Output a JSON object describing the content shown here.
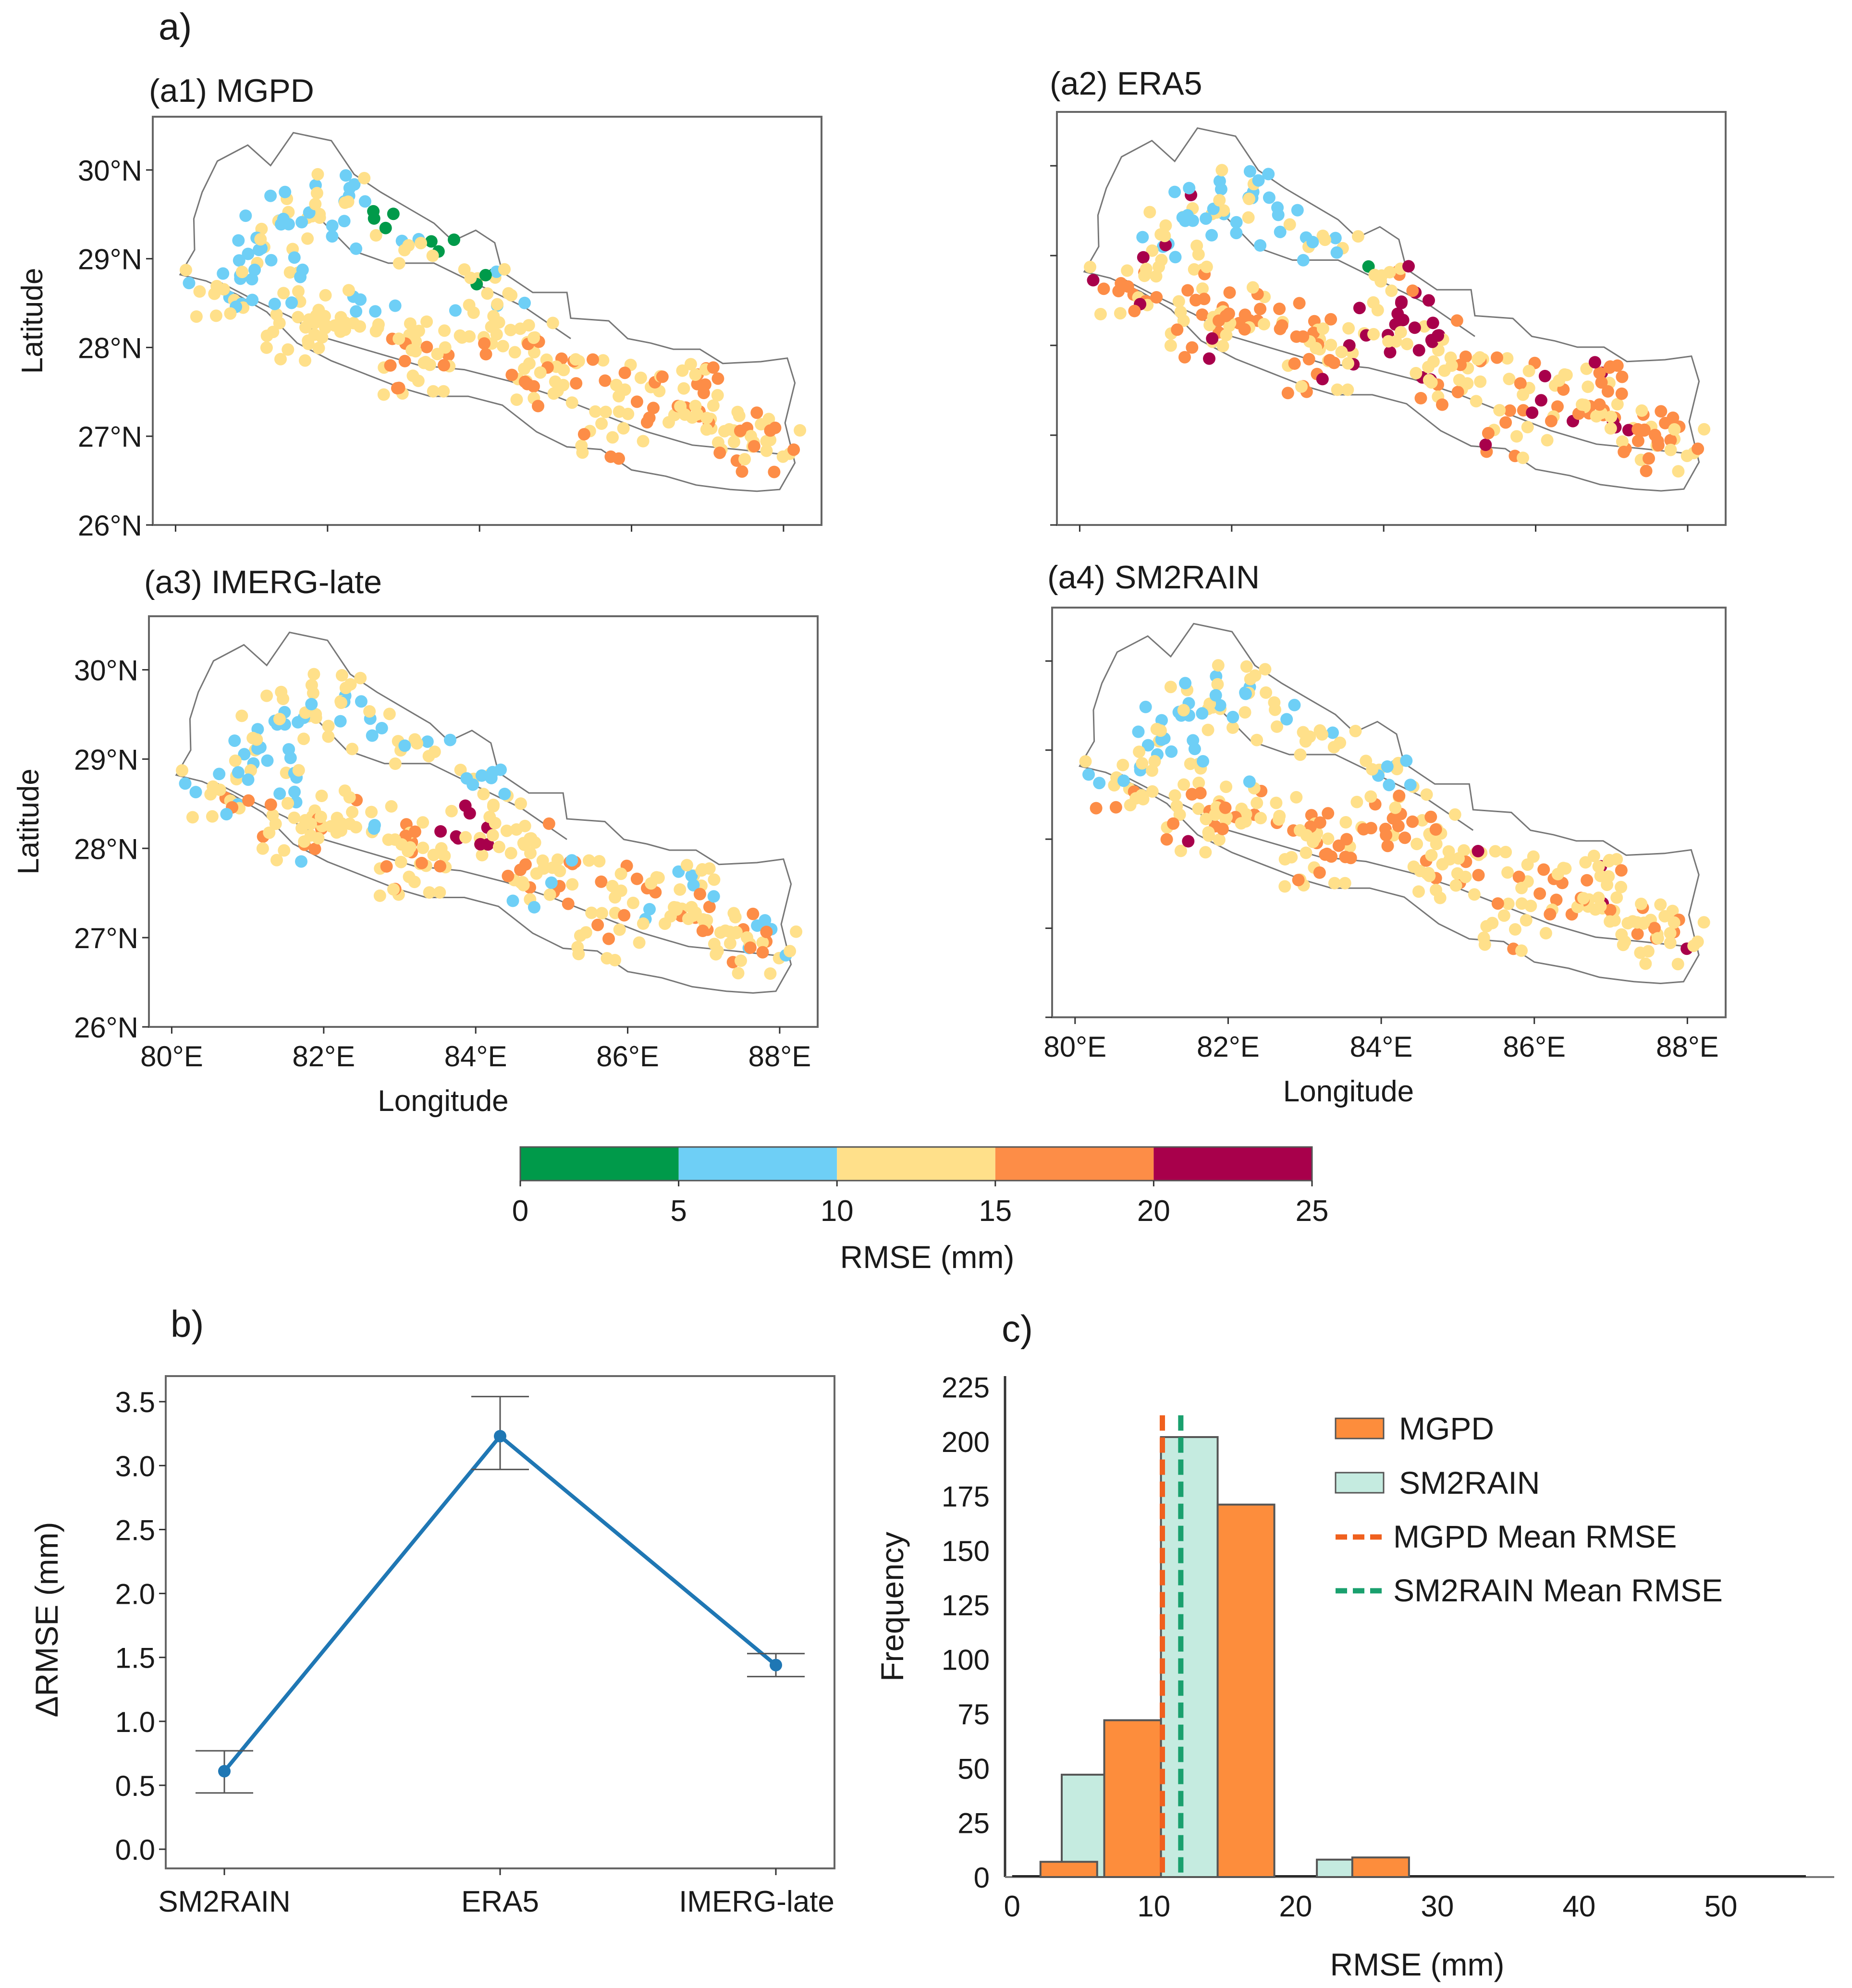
{
  "figure_labels": {
    "a": "a)",
    "b": "b)",
    "c": "c)"
  },
  "maps": {
    "panels": [
      {
        "id": "a1",
        "title": "(a1) MGPD"
      },
      {
        "id": "a2",
        "title": "(a2) ERA5"
      },
      {
        "id": "a3",
        "title": "(a3) IMERG-late"
      },
      {
        "id": "a4",
        "title": "(a4) SM2RAIN"
      }
    ],
    "lat_ticks": [
      "30°N",
      "29°N",
      "28°N",
      "27°N",
      "26°N"
    ],
    "lon_ticks": [
      "80°E",
      "82°E",
      "84°E",
      "86°E",
      "88°E"
    ],
    "ylabel": "Latitude",
    "xlabel": "Longitude",
    "bin_colors": [
      "#009a4a",
      "#6ecff6",
      "#ffe08a",
      "#fd8d47",
      "#a8004b"
    ]
  },
  "colorbar": {
    "ticks": [
      "0",
      "5",
      "10",
      "15",
      "20",
      "25"
    ],
    "colors": [
      "#009a4a",
      "#6ecff6",
      "#ffe08a",
      "#fd8d47",
      "#a8004b"
    ],
    "label": "RMSE (mm)"
  },
  "chart_data": [
    {
      "id": "b",
      "type": "line",
      "categories": [
        "SM2RAIN",
        "ERA5",
        "IMERG-late"
      ],
      "values": [
        0.61,
        3.23,
        1.44
      ],
      "error_low": [
        0.44,
        2.97,
        1.35
      ],
      "error_high": [
        0.77,
        3.54,
        1.53
      ],
      "ylabel": "ΔRMSE (mm)",
      "ylim": [
        -0.15,
        3.7
      ],
      "yticks": [
        "0.0",
        "0.5",
        "1.0",
        "1.5",
        "2.0",
        "2.5",
        "3.0",
        "3.5"
      ],
      "color": "#1f77b4"
    },
    {
      "id": "c",
      "type": "bar",
      "xlabel": "RMSE (mm)",
      "ylabel": "Frequency",
      "xlim": [
        -0.5,
        58
      ],
      "ylim": [
        0,
        230
      ],
      "xticks": [
        "0",
        "10",
        "20",
        "30",
        "40",
        "50"
      ],
      "yticks": [
        "0",
        "25",
        "50",
        "75",
        "100",
        "125",
        "150",
        "175",
        "200",
        "225"
      ],
      "series": [
        {
          "name": "SM2RAIN",
          "color": "#c5ebe0",
          "bins": [
            [
              3.5,
              7.5,
              47
            ],
            [
              10.5,
              14.5,
              202
            ],
            [
              21.5,
              25.5,
              8
            ]
          ]
        },
        {
          "name": "MGPD",
          "color": "#fd8d3c",
          "bins": [
            [
              2,
              6,
              7
            ],
            [
              6.5,
              10.5,
              72
            ],
            [
              14.5,
              18.5,
              171
            ],
            [
              24,
              28,
              9
            ]
          ]
        }
      ],
      "legend": [
        "MGPD",
        "SM2RAIN",
        "MGPD Mean RMSE",
        "SM2RAIN Mean RMSE"
      ],
      "mean_lines": [
        {
          "name": "MGPD Mean RMSE",
          "value": 10.6,
          "color": "#f0601e"
        },
        {
          "name": "SM2RAIN Mean RMSE",
          "value": 11.9,
          "color": "#1aa06e"
        }
      ]
    }
  ]
}
